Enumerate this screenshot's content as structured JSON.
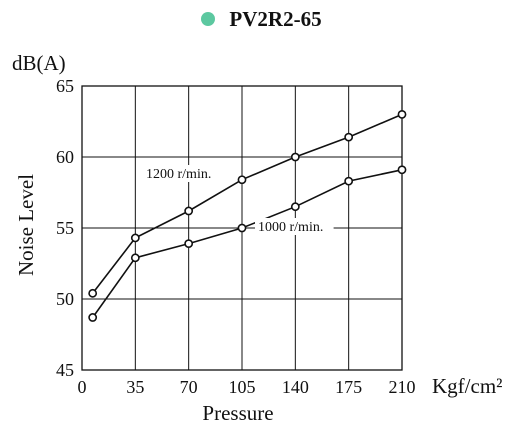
{
  "title": {
    "text": "PV2R2-65",
    "dot_color": "#5cc8a0"
  },
  "chart_data": {
    "type": "line",
    "title": "PV2R2-65",
    "xlabel": "Pressure",
    "x_unit": "Kgf/cm²",
    "ylabel": "Noise Level",
    "y_unit": "dB(A)",
    "xlim": [
      0,
      210
    ],
    "ylim": [
      45,
      65
    ],
    "x_ticks": [
      0,
      35,
      70,
      105,
      140,
      175,
      210
    ],
    "y_ticks": [
      45,
      50,
      55,
      60,
      65
    ],
    "grid": true,
    "series": [
      {
        "name": "1200 r/min.",
        "x": [
          7,
          35,
          70,
          105,
          140,
          175,
          210
        ],
        "y": [
          50.4,
          54.3,
          56.2,
          58.4,
          60.0,
          61.4,
          63.0
        ]
      },
      {
        "name": "1000 r/min.",
        "x": [
          7,
          35,
          70,
          105,
          140,
          175,
          210
        ],
        "y": [
          48.7,
          52.9,
          53.9,
          55.0,
          56.5,
          58.3,
          59.1
        ]
      }
    ]
  }
}
